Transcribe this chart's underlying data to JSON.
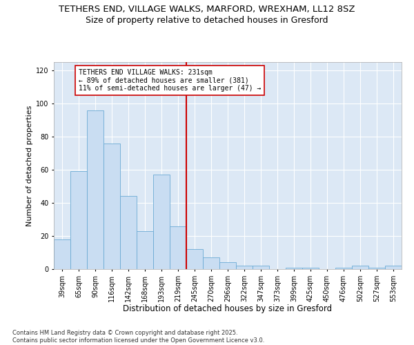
{
  "title": "TETHERS END, VILLAGE WALKS, MARFORD, WREXHAM, LL12 8SZ",
  "subtitle": "Size of property relative to detached houses in Gresford",
  "xlabel": "Distribution of detached houses by size in Gresford",
  "ylabel": "Number of detached properties",
  "categories": [
    "39sqm",
    "65sqm",
    "90sqm",
    "116sqm",
    "142sqm",
    "168sqm",
    "193sqm",
    "219sqm",
    "245sqm",
    "270sqm",
    "296sqm",
    "322sqm",
    "347sqm",
    "373sqm",
    "399sqm",
    "425sqm",
    "450sqm",
    "476sqm",
    "502sqm",
    "527sqm",
    "553sqm"
  ],
  "values": [
    18,
    59,
    96,
    76,
    44,
    23,
    57,
    26,
    12,
    7,
    4,
    2,
    2,
    0,
    1,
    1,
    0,
    1,
    2,
    1,
    2
  ],
  "bar_color": "#c9ddf2",
  "bar_edge_color": "#6aaad4",
  "vline_color": "#cc0000",
  "annotation_text": "TETHERS END VILLAGE WALKS: 231sqm\n← 89% of detached houses are smaller (381)\n11% of semi-detached houses are larger (47) →",
  "annotation_box_color": "#cc0000",
  "ylim": [
    0,
    125
  ],
  "yticks": [
    0,
    20,
    40,
    60,
    80,
    100,
    120
  ],
  "background_color": "#dce8f5",
  "footnote": "Contains HM Land Registry data © Crown copyright and database right 2025.\nContains public sector information licensed under the Open Government Licence v3.0.",
  "title_fontsize": 9.5,
  "subtitle_fontsize": 9,
  "xlabel_fontsize": 8.5,
  "ylabel_fontsize": 8,
  "tick_fontsize": 7,
  "annotation_fontsize": 7,
  "footnote_fontsize": 6
}
